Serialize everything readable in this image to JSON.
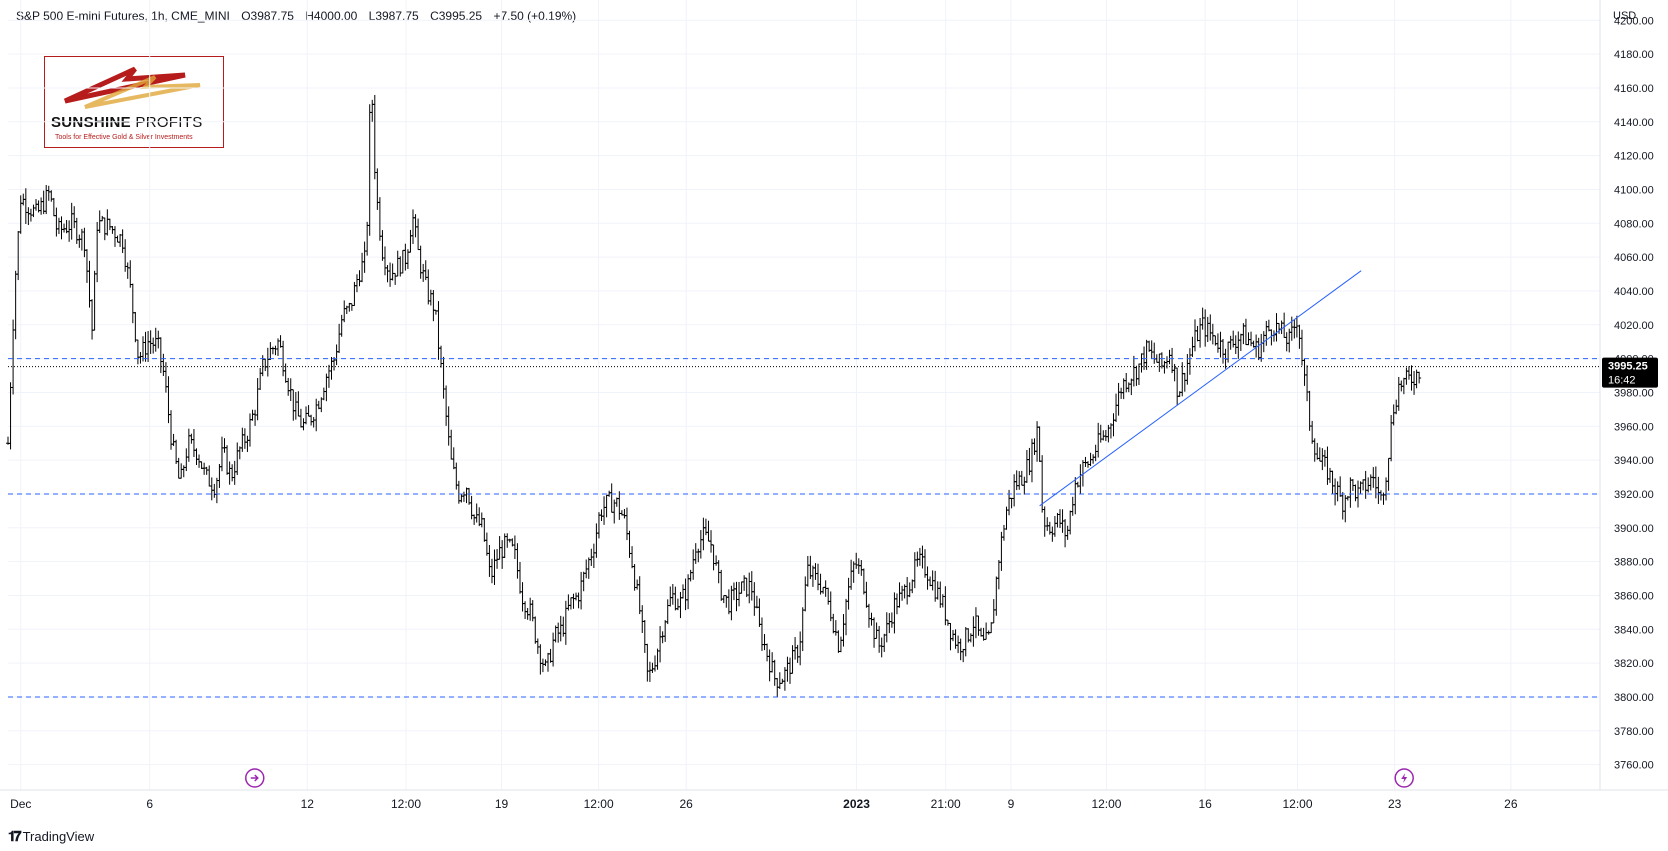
{
  "header": {
    "symbol": "S&P 500 E-mini Futures, 1h, CME_MINI",
    "open": "O3987.75",
    "high": "H4000.00",
    "low": "L3987.75",
    "close": "C3995.25",
    "change": "+7.50 (+0.19%)"
  },
  "logo": {
    "name_bold": "SUNSHINE",
    "name_thin": "PROFITS",
    "tagline": "Tools for Effective Gold & Silver Investments"
  },
  "footer": {
    "brand": "TradingView",
    "icon": "tradingview-logo-icon"
  },
  "colors": {
    "candle": "#000000",
    "hline": "#2962ff",
    "trendline": "#2962ff",
    "price_label_bg": "#000000",
    "grid": "#f0f3fa",
    "marker": "#9c27b0"
  },
  "chart_data": {
    "type": "ohlc",
    "currency": "USD",
    "ylim": [
      3745,
      4212
    ],
    "y_ticks": [
      "3760.00",
      "3780.00",
      "3800.00",
      "3820.00",
      "3840.00",
      "3860.00",
      "3880.00",
      "3900.00",
      "3920.00",
      "3940.00",
      "3960.00",
      "3980.00",
      "4000.00",
      "4020.00",
      "4040.00",
      "4060.00",
      "4080.00",
      "4100.00",
      "4120.00",
      "4140.00",
      "4160.00",
      "4180.00",
      "4200.00"
    ],
    "x_ticks": [
      {
        "label": "Dec",
        "x": 0.008,
        "bold": false
      },
      {
        "label": "6",
        "x": 0.089,
        "bold": false
      },
      {
        "label": "12",
        "x": 0.188,
        "bold": false
      },
      {
        "label": "12:00",
        "x": 0.25,
        "bold": false
      },
      {
        "label": "19",
        "x": 0.31,
        "bold": false
      },
      {
        "label": "12:00",
        "x": 0.371,
        "bold": false
      },
      {
        "label": "26",
        "x": 0.426,
        "bold": false
      },
      {
        "label": "2023",
        "x": 0.533,
        "bold": true
      },
      {
        "label": "21:00",
        "x": 0.589,
        "bold": false
      },
      {
        "label": "9",
        "x": 0.63,
        "bold": false
      },
      {
        "label": "12:00",
        "x": 0.69,
        "bold": false
      },
      {
        "label": "16",
        "x": 0.752,
        "bold": false
      },
      {
        "label": "12:00",
        "x": 0.81,
        "bold": false
      },
      {
        "label": "23",
        "x": 0.871,
        "bold": false
      },
      {
        "label": "26",
        "x": 0.944,
        "bold": false
      }
    ],
    "x_range": [
      0,
      1
    ],
    "horizontal_lines": [
      4000,
      3920,
      3800
    ],
    "last_price": "3995.25",
    "countdown": "16:42",
    "trendline": {
      "x1": 0.648,
      "y1": 3913,
      "x2": 0.85,
      "y2": 4052
    },
    "markers": [
      {
        "x": 0.155,
        "icon": "forward-circle-icon"
      },
      {
        "x": 0.877,
        "icon": "lightning-circle-icon"
      }
    ],
    "price_path": [
      [
        0.0,
        3950
      ],
      [
        0.004,
        4040
      ],
      [
        0.008,
        4095
      ],
      [
        0.018,
        4085
      ],
      [
        0.026,
        4098
      ],
      [
        0.031,
        4075
      ],
      [
        0.04,
        4080
      ],
      [
        0.048,
        4070
      ],
      [
        0.053,
        4015
      ],
      [
        0.056,
        4080
      ],
      [
        0.064,
        4078
      ],
      [
        0.072,
        4070
      ],
      [
        0.077,
        4040
      ],
      [
        0.082,
        4000
      ],
      [
        0.088,
        4010
      ],
      [
        0.094,
        4008
      ],
      [
        0.098,
        3990
      ],
      [
        0.103,
        3950
      ],
      [
        0.108,
        3925
      ],
      [
        0.113,
        3950
      ],
      [
        0.119,
        3945
      ],
      [
        0.124,
        3930
      ],
      [
        0.13,
        3925
      ],
      [
        0.135,
        3945
      ],
      [
        0.14,
        3930
      ],
      [
        0.145,
        3945
      ],
      [
        0.15,
        3955
      ],
      [
        0.155,
        3970
      ],
      [
        0.16,
        3995
      ],
      [
        0.165,
        4005
      ],
      [
        0.17,
        4010
      ],
      [
        0.175,
        3990
      ],
      [
        0.18,
        3970
      ],
      [
        0.185,
        3960
      ],
      [
        0.19,
        3965
      ],
      [
        0.195,
        3975
      ],
      [
        0.2,
        3990
      ],
      [
        0.205,
        4000
      ],
      [
        0.21,
        4025
      ],
      [
        0.215,
        4030
      ],
      [
        0.22,
        4050
      ],
      [
        0.225,
        4060
      ],
      [
        0.228,
        4170
      ],
      [
        0.231,
        4100
      ],
      [
        0.235,
        4065
      ],
      [
        0.24,
        4050
      ],
      [
        0.245,
        4055
      ],
      [
        0.25,
        4060
      ],
      [
        0.254,
        4085
      ],
      [
        0.258,
        4060
      ],
      [
        0.263,
        4040
      ],
      [
        0.268,
        4030
      ],
      [
        0.273,
        3985
      ],
      [
        0.278,
        3940
      ],
      [
        0.283,
        3920
      ],
      [
        0.288,
        3925
      ],
      [
        0.293,
        3905
      ],
      [
        0.298,
        3900
      ],
      [
        0.303,
        3870
      ],
      [
        0.308,
        3885
      ],
      [
        0.313,
        3890
      ],
      [
        0.318,
        3885
      ],
      [
        0.323,
        3860
      ],
      [
        0.328,
        3850
      ],
      [
        0.333,
        3830
      ],
      [
        0.338,
        3815
      ],
      [
        0.343,
        3835
      ],
      [
        0.348,
        3840
      ],
      [
        0.353,
        3855
      ],
      [
        0.358,
        3860
      ],
      [
        0.363,
        3875
      ],
      [
        0.368,
        3890
      ],
      [
        0.372,
        3910
      ],
      [
        0.377,
        3915
      ],
      [
        0.382,
        3915
      ],
      [
        0.387,
        3905
      ],
      [
        0.392,
        3880
      ],
      [
        0.397,
        3850
      ],
      [
        0.402,
        3810
      ],
      [
        0.407,
        3825
      ],
      [
        0.412,
        3845
      ],
      [
        0.417,
        3860
      ],
      [
        0.422,
        3855
      ],
      [
        0.427,
        3865
      ],
      [
        0.432,
        3890
      ],
      [
        0.437,
        3895
      ],
      [
        0.442,
        3890
      ],
      [
        0.447,
        3865
      ],
      [
        0.452,
        3855
      ],
      [
        0.457,
        3860
      ],
      [
        0.462,
        3865
      ],
      [
        0.467,
        3865
      ],
      [
        0.472,
        3840
      ],
      [
        0.477,
        3825
      ],
      [
        0.482,
        3810
      ],
      [
        0.487,
        3812
      ],
      [
        0.492,
        3820
      ],
      [
        0.497,
        3830
      ],
      [
        0.502,
        3875
      ],
      [
        0.507,
        3870
      ],
      [
        0.512,
        3865
      ],
      [
        0.517,
        3850
      ],
      [
        0.522,
        3830
      ],
      [
        0.527,
        3860
      ],
      [
        0.532,
        3880
      ],
      [
        0.537,
        3870
      ],
      [
        0.542,
        3845
      ],
      [
        0.547,
        3830
      ],
      [
        0.552,
        3840
      ],
      [
        0.557,
        3855
      ],
      [
        0.562,
        3860
      ],
      [
        0.567,
        3870
      ],
      [
        0.572,
        3880
      ],
      [
        0.577,
        3875
      ],
      [
        0.582,
        3865
      ],
      [
        0.587,
        3855
      ],
      [
        0.592,
        3840
      ],
      [
        0.597,
        3830
      ],
      [
        0.602,
        3835
      ],
      [
        0.607,
        3845
      ],
      [
        0.612,
        3830
      ],
      [
        0.617,
        3835
      ],
      [
        0.622,
        3880
      ],
      [
        0.627,
        3910
      ],
      [
        0.632,
        3925
      ],
      [
        0.637,
        3930
      ],
      [
        0.642,
        3940
      ],
      [
        0.647,
        3960
      ],
      [
        0.65,
        3905
      ],
      [
        0.655,
        3900
      ],
      [
        0.66,
        3905
      ],
      [
        0.665,
        3895
      ],
      [
        0.67,
        3925
      ],
      [
        0.675,
        3935
      ],
      [
        0.68,
        3940
      ],
      [
        0.685,
        3950
      ],
      [
        0.69,
        3955
      ],
      [
        0.695,
        3970
      ],
      [
        0.7,
        3985
      ],
      [
        0.705,
        3990
      ],
      [
        0.71,
        3995
      ],
      [
        0.715,
        4005
      ],
      [
        0.72,
        4000
      ],
      [
        0.725,
        3995
      ],
      [
        0.73,
        4005
      ],
      [
        0.735,
        3980
      ],
      [
        0.74,
        3995
      ],
      [
        0.745,
        4010
      ],
      [
        0.75,
        4020
      ],
      [
        0.755,
        4015
      ],
      [
        0.76,
        4010
      ],
      [
        0.765,
        4005
      ],
      [
        0.77,
        4010
      ],
      [
        0.775,
        4015
      ],
      [
        0.78,
        4010
      ],
      [
        0.785,
        4005
      ],
      [
        0.79,
        4015
      ],
      [
        0.795,
        4020
      ],
      [
        0.8,
        4015
      ],
      [
        0.805,
        4010
      ],
      [
        0.81,
        4025
      ],
      [
        0.814,
        3990
      ],
      [
        0.818,
        3960
      ],
      [
        0.823,
        3940
      ],
      [
        0.828,
        3935
      ],
      [
        0.833,
        3925
      ],
      [
        0.838,
        3915
      ],
      [
        0.843,
        3925
      ],
      [
        0.848,
        3920
      ],
      [
        0.853,
        3925
      ],
      [
        0.858,
        3930
      ],
      [
        0.862,
        3915
      ],
      [
        0.866,
        3935
      ],
      [
        0.87,
        3970
      ],
      [
        0.874,
        3985
      ],
      [
        0.879,
        3987
      ],
      [
        0.884,
        3990
      ],
      [
        0.888,
        3995
      ]
    ]
  }
}
